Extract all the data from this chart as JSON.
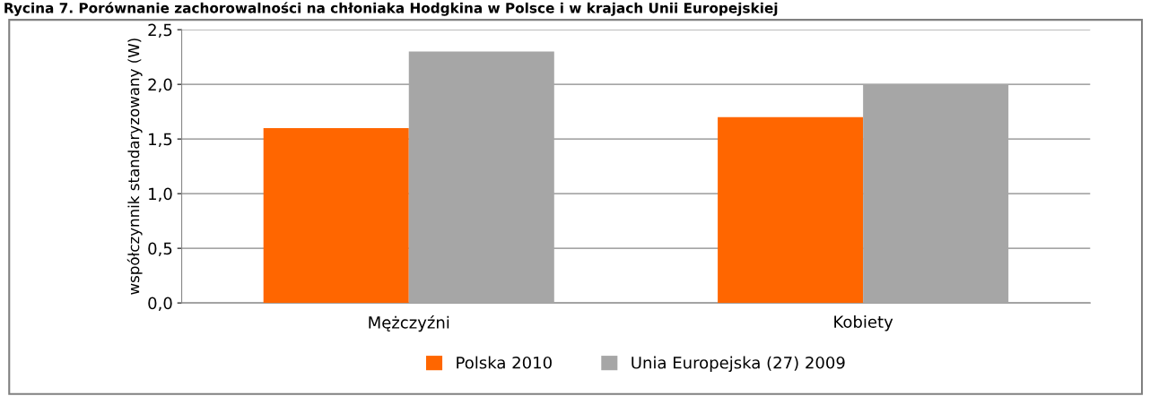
{
  "chart_data": {
    "type": "bar",
    "title": "Rycina 7. Porównanie zachorowalności na chłoniaka Hodgkina w Polsce i w krajach Unii Europejskiej",
    "ylabel": "współczynnik standaryzowany (W)",
    "categories": [
      "Mężczyźni",
      "Kobiety"
    ],
    "series": [
      {
        "name": "Polska 2010",
        "color": "#ff6600",
        "values": [
          1.6,
          1.7
        ]
      },
      {
        "name": "Unia Europejska (27) 2009",
        "color": "#a6a6a6",
        "values": [
          2.3,
          2.0
        ]
      }
    ],
    "ylim": [
      0,
      2.5
    ],
    "yticks": [
      {
        "value": 0,
        "label": "0,0"
      },
      {
        "value": 0.5,
        "label": "0,5"
      },
      {
        "value": 1.0,
        "label": "1,0"
      },
      {
        "value": 1.5,
        "label": "1,5"
      },
      {
        "value": 2.0,
        "label": "2,0"
      },
      {
        "value": 2.5,
        "label": "2,5"
      }
    ],
    "grid": "y",
    "legend": "bottom"
  }
}
